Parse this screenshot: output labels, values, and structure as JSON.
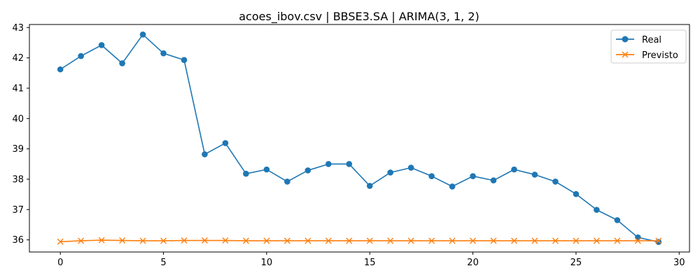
{
  "chart_data": {
    "type": "line",
    "title": "acoes_ibov.csv | BBSE3.SA | ARIMA(3, 1, 2)",
    "xlabel": "",
    "ylabel": "",
    "xlim": [
      -1.5,
      30.5
    ],
    "ylim": [
      35.6,
      43.1
    ],
    "x_ticks": [
      0,
      5,
      10,
      15,
      20,
      25,
      30
    ],
    "y_ticks": [
      36,
      37,
      38,
      39,
      40,
      41,
      42,
      43
    ],
    "grid": false,
    "legend_position": "top-right",
    "x": [
      0,
      1,
      2,
      3,
      4,
      5,
      6,
      7,
      8,
      9,
      10,
      11,
      12,
      13,
      14,
      15,
      16,
      17,
      18,
      19,
      20,
      21,
      22,
      23,
      24,
      25,
      26,
      27,
      28,
      29
    ],
    "series": [
      {
        "name": "Real",
        "color": "#1f77b4",
        "marker": "circle",
        "values": [
          41.62,
          42.06,
          42.42,
          41.82,
          42.77,
          42.15,
          41.93,
          38.82,
          39.19,
          38.18,
          38.32,
          37.92,
          38.29,
          38.5,
          38.5,
          37.78,
          38.22,
          38.38,
          38.1,
          37.76,
          38.1,
          37.96,
          38.32,
          38.15,
          37.92,
          37.51,
          36.99,
          36.65,
          36.08,
          35.93
        ]
      },
      {
        "name": "Previsto",
        "color": "#ff7f0e",
        "marker": "x",
        "values": [
          35.94,
          35.97,
          35.99,
          35.98,
          35.97,
          35.97,
          35.98,
          35.98,
          35.98,
          35.97,
          35.97,
          35.97,
          35.97,
          35.97,
          35.97,
          35.97,
          35.97,
          35.97,
          35.97,
          35.97,
          35.97,
          35.97,
          35.97,
          35.97,
          35.97,
          35.97,
          35.97,
          35.97,
          35.97,
          35.97
        ]
      }
    ]
  }
}
